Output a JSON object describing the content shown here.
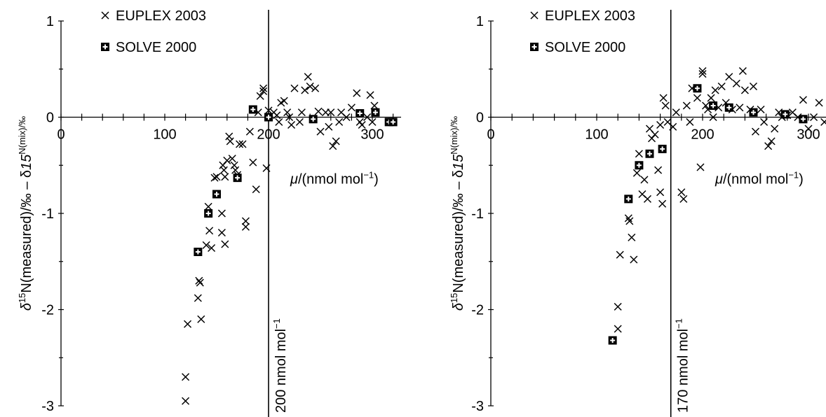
{
  "chart_data": [
    {
      "type": "scatter",
      "ylabel_html": "δ15N(measured)/‰ − δ15N(mix)/‰",
      "ylabel_parts": [
        "δ",
        "15",
        "N(measured)/‰ – δ",
        "15",
        "N(mix)/‰"
      ],
      "xlabel_parts": [
        "μ",
        "/(nmol mol",
        "−1",
        ")"
      ],
      "xlim": [
        0,
        325
      ],
      "ylim": [
        -3,
        1
      ],
      "x_ticks": [
        0,
        100,
        200,
        300
      ],
      "y_ticks": [
        -3,
        -2,
        -1,
        0,
        1
      ],
      "x_tick_labels": [
        "0",
        "100",
        "200",
        "300"
      ],
      "y_tick_labels": [
        "-3",
        "-2",
        "-1",
        "0",
        "1"
      ],
      "threshold": {
        "x": 200,
        "label_parts": [
          "200 nmol mol",
          "−1"
        ]
      },
      "legend": {
        "position": "top-left",
        "entries": [
          "EUPLEX 2003",
          "SOLVE 2000"
        ]
      },
      "series": [
        {
          "name": "EUPLEX 2003",
          "marker": "x",
          "points": [
            [
              120,
              -2.7
            ],
            [
              120,
              -2.95
            ],
            [
              122,
              -2.15
            ],
            [
              132,
              -1.88
            ],
            [
              133,
              -1.7
            ],
            [
              134,
              -1.72
            ],
            [
              135,
              -2.1
            ],
            [
              140,
              -1.33
            ],
            [
              142,
              -0.93
            ],
            [
              143,
              -1.18
            ],
            [
              145,
              -1.36
            ],
            [
              148,
              -0.63
            ],
            [
              150,
              -0.62
            ],
            [
              155,
              -1.0
            ],
            [
              155,
              -1.2
            ],
            [
              156,
              -0.5
            ],
            [
              157,
              -0.55
            ],
            [
              158,
              -0.62
            ],
            [
              158,
              -1.32
            ],
            [
              160,
              -0.45
            ],
            [
              162,
              -0.2
            ],
            [
              163,
              -0.25
            ],
            [
              165,
              -0.43
            ],
            [
              167,
              -0.5
            ],
            [
              168,
              -0.55
            ],
            [
              170,
              -0.6
            ],
            [
              172,
              -0.28
            ],
            [
              175,
              -0.28
            ],
            [
              178,
              -1.08
            ],
            [
              178,
              -1.14
            ],
            [
              182,
              -0.15
            ],
            [
              185,
              -0.47
            ],
            [
              188,
              -0.75
            ],
            [
              190,
              0.05
            ],
            [
              192,
              0.22
            ],
            [
              195,
              0.3
            ],
            [
              195,
              0.27
            ],
            [
              198,
              -0.53
            ],
            [
              200,
              0.07
            ],
            [
              205,
              0.05
            ],
            [
              208,
              0.02
            ],
            [
              210,
              -0.05
            ],
            [
              212,
              0.15
            ],
            [
              215,
              0.17
            ],
            [
              218,
              0.05
            ],
            [
              220,
              0.0
            ],
            [
              222,
              -0.08
            ],
            [
              225,
              0.3
            ],
            [
              230,
              -0.05
            ],
            [
              232,
              0.05
            ],
            [
              235,
              0.28
            ],
            [
              238,
              0.42
            ],
            [
              240,
              0.32
            ],
            [
              245,
              0.3
            ],
            [
              248,
              0.06
            ],
            [
              250,
              -0.15
            ],
            [
              255,
              0.05
            ],
            [
              258,
              -0.1
            ],
            [
              260,
              0.05
            ],
            [
              262,
              -0.3
            ],
            [
              265,
              -0.25
            ],
            [
              268,
              -0.05
            ],
            [
              270,
              0.05
            ],
            [
              275,
              0.0
            ],
            [
              280,
              0.1
            ],
            [
              285,
              0.25
            ],
            [
              288,
              -0.05
            ],
            [
              290,
              -0.08
            ],
            [
              295,
              0.0
            ],
            [
              298,
              0.23
            ],
            [
              300,
              -0.05
            ],
            [
              302,
              0.12
            ]
          ]
        },
        {
          "name": "SOLVE 2000",
          "marker": "square-plus",
          "points": [
            [
              132,
              -1.4
            ],
            [
              142,
              -1.0
            ],
            [
              150,
              -0.8
            ],
            [
              170,
              -0.63
            ],
            [
              185,
              0.08
            ],
            [
              200,
              0.0
            ],
            [
              243,
              -0.02
            ],
            [
              288,
              0.04
            ],
            [
              303,
              0.05
            ],
            [
              316,
              -0.05
            ],
            [
              320,
              -0.05
            ]
          ]
        }
      ]
    },
    {
      "type": "scatter",
      "ylabel_parts": [
        "δ",
        "15",
        "N(measured)/‰ – δ",
        "15",
        "N(mix)/‰"
      ],
      "xlabel_parts": [
        "μ",
        "/(nmol mol",
        "−1",
        ")"
      ],
      "xlim": [
        0,
        325
      ],
      "ylim": [
        -3,
        1
      ],
      "x_ticks": [
        0,
        100,
        200,
        300
      ],
      "y_ticks": [
        -3,
        -2,
        -1,
        0,
        1
      ],
      "x_tick_labels": [
        "0",
        "100",
        "200",
        "300"
      ],
      "y_tick_labels": [
        "-3",
        "-2",
        "-1",
        "0",
        "1"
      ],
      "threshold": {
        "x": 170,
        "label_parts": [
          "170 nmol mol",
          "−1"
        ]
      },
      "legend": {
        "position": "top-left",
        "entries": [
          "EUPLEX 2003",
          "SOLVE 2000"
        ]
      },
      "series": [
        {
          "name": "EUPLEX 2003",
          "marker": "x",
          "points": [
            [
              120,
              -1.97
            ],
            [
              120,
              -2.2
            ],
            [
              122,
              -1.43
            ],
            [
              130,
              -1.05
            ],
            [
              131,
              -1.08
            ],
            [
              133,
              -1.25
            ],
            [
              135,
              -1.48
            ],
            [
              138,
              -0.58
            ],
            [
              140,
              -0.38
            ],
            [
              143,
              -0.8
            ],
            [
              145,
              -0.65
            ],
            [
              148,
              -0.85
            ],
            [
              150,
              -0.12
            ],
            [
              152,
              -0.22
            ],
            [
              155,
              -0.18
            ],
            [
              158,
              -0.55
            ],
            [
              160,
              -0.08
            ],
            [
              160,
              -0.78
            ],
            [
              162,
              -0.9
            ],
            [
              163,
              0.2
            ],
            [
              165,
              0.12
            ],
            [
              167,
              -0.05
            ],
            [
              172,
              -0.1
            ],
            [
              175,
              0.05
            ],
            [
              180,
              -0.78
            ],
            [
              182,
              -0.85
            ],
            [
              185,
              0.12
            ],
            [
              188,
              -0.05
            ],
            [
              190,
              0.3
            ],
            [
              195,
              0.2
            ],
            [
              198,
              -0.52
            ],
            [
              200,
              0.48
            ],
            [
              200,
              0.45
            ],
            [
              203,
              0.12
            ],
            [
              205,
              0.08
            ],
            [
              208,
              0.2
            ],
            [
              210,
              0.0
            ],
            [
              212,
              0.28
            ],
            [
              215,
              0.1
            ],
            [
              218,
              0.32
            ],
            [
              222,
              0.15
            ],
            [
              225,
              0.42
            ],
            [
              228,
              0.08
            ],
            [
              232,
              0.35
            ],
            [
              235,
              0.1
            ],
            [
              238,
              0.48
            ],
            [
              240,
              0.28
            ],
            [
              245,
              0.08
            ],
            [
              248,
              0.32
            ],
            [
              250,
              -0.15
            ],
            [
              255,
              0.08
            ],
            [
              258,
              -0.05
            ],
            [
              262,
              -0.3
            ],
            [
              265,
              -0.25
            ],
            [
              268,
              -0.12
            ],
            [
              272,
              0.05
            ],
            [
              275,
              0.0
            ],
            [
              280,
              0.02
            ],
            [
              285,
              0.05
            ],
            [
              290,
              0.0
            ],
            [
              295,
              0.18
            ],
            [
              300,
              -0.12
            ],
            [
              305,
              0.0
            ],
            [
              310,
              0.15
            ],
            [
              315,
              -0.05
            ],
            [
              318,
              -0.35
            ]
          ]
        },
        {
          "name": "SOLVE 2000",
          "marker": "square-plus",
          "points": [
            [
              115,
              -2.32
            ],
            [
              130,
              -0.85
            ],
            [
              140,
              -0.5
            ],
            [
              150,
              -0.38
            ],
            [
              162,
              -0.33
            ],
            [
              195,
              0.3
            ],
            [
              210,
              0.12
            ],
            [
              225,
              0.1
            ],
            [
              248,
              0.05
            ],
            [
              278,
              0.03
            ],
            [
              295,
              -0.02
            ],
            [
              318,
              -0.08
            ]
          ]
        }
      ]
    }
  ]
}
